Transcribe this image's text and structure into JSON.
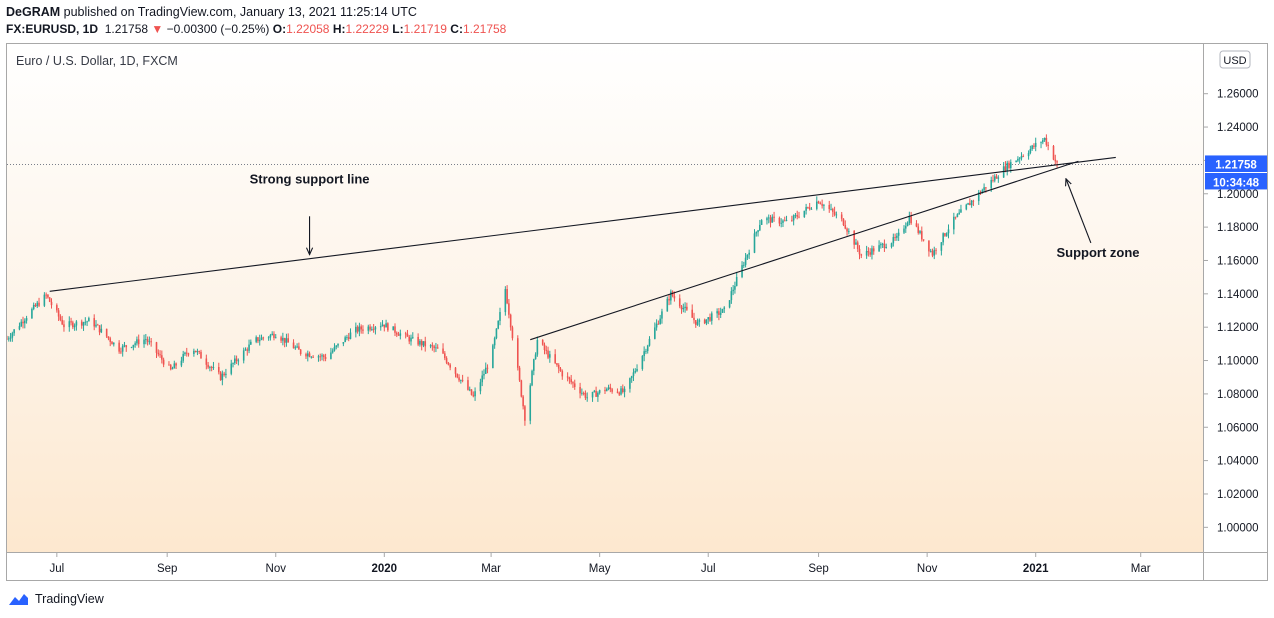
{
  "header": {
    "author": "DeGRAM",
    "published": " published on TradingView.com, January 13, 2021 11:25:14 UTC",
    "symbol": "FX:EURUSD, 1D",
    "last": "1.21758",
    "change": "−0.00300 (−0.25%)",
    "open_label": "O:",
    "open": "1.22058",
    "high_label": "H:",
    "high": "1.22229",
    "low_label": "L:",
    "low": "1.21719",
    "close_label": "C:",
    "close": "1.21758"
  },
  "footer": {
    "brand": "TradingView"
  },
  "colors": {
    "up": "#26a69a",
    "down": "#ef5350",
    "accent": "#2962ff",
    "price_tag": "#2962ff"
  },
  "chart_data": {
    "type": "candlestick",
    "title": "Euro / U.S. Dollar, 1D, FXCM",
    "currency_badge": "USD",
    "y_ticks": [
      "1.00000",
      "1.02000",
      "1.04000",
      "1.06000",
      "1.08000",
      "1.10000",
      "1.12000",
      "1.14000",
      "1.16000",
      "1.18000",
      "1.20000",
      "1.22000",
      "1.24000",
      "1.26000"
    ],
    "ylim": [
      0.99,
      1.285
    ],
    "x_ticks": [
      {
        "label": "Jul",
        "date": "2019-07-01",
        "bold": false
      },
      {
        "label": "Sep",
        "date": "2019-09-01",
        "bold": false
      },
      {
        "label": "Nov",
        "date": "2019-11-01",
        "bold": false
      },
      {
        "label": "2020",
        "date": "2020-01-01",
        "bold": true
      },
      {
        "label": "Mar",
        "date": "2020-03-01",
        "bold": false
      },
      {
        "label": "May",
        "date": "2020-05-01",
        "bold": false
      },
      {
        "label": "Jul",
        "date": "2020-07-01",
        "bold": false
      },
      {
        "label": "Sep",
        "date": "2020-09-01",
        "bold": false
      },
      {
        "label": "Nov",
        "date": "2020-11-01",
        "bold": false
      },
      {
        "label": "2021",
        "date": "2021-01-01",
        "bold": true
      },
      {
        "label": "Mar",
        "date": "2021-03-01",
        "bold": false
      }
    ],
    "xlim": [
      "2019-06-03",
      "2021-04-05"
    ],
    "price_path": [
      [
        "2019-06-03",
        1.113
      ],
      [
        "2019-06-15",
        1.128
      ],
      [
        "2019-06-25",
        1.139
      ],
      [
        "2019-07-05",
        1.121
      ],
      [
        "2019-07-20",
        1.124
      ],
      [
        "2019-08-05",
        1.107
      ],
      [
        "2019-08-20",
        1.113
      ],
      [
        "2019-09-03",
        1.094
      ],
      [
        "2019-09-15",
        1.108
      ],
      [
        "2019-10-01",
        1.09
      ],
      [
        "2019-10-20",
        1.112
      ],
      [
        "2019-11-01",
        1.116
      ],
      [
        "2019-11-15",
        1.105
      ],
      [
        "2019-11-29",
        1.102
      ],
      [
        "2019-12-15",
        1.118
      ],
      [
        "2019-12-31",
        1.122
      ],
      [
        "2020-01-15",
        1.113
      ],
      [
        "2020-02-01",
        1.106
      ],
      [
        "2020-02-20",
        1.078
      ],
      [
        "2020-03-01",
        1.102
      ],
      [
        "2020-03-09",
        1.143
      ],
      [
        "2020-03-20",
        1.066
      ],
      [
        "2020-03-27",
        1.112
      ],
      [
        "2020-04-10",
        1.092
      ],
      [
        "2020-04-24",
        1.078
      ],
      [
        "2020-05-05",
        1.083
      ],
      [
        "2020-05-15",
        1.081
      ],
      [
        "2020-05-28",
        1.11
      ],
      [
        "2020-06-10",
        1.14
      ],
      [
        "2020-06-25",
        1.122
      ],
      [
        "2020-07-10",
        1.13
      ],
      [
        "2020-07-31",
        1.185
      ],
      [
        "2020-08-15",
        1.183
      ],
      [
        "2020-09-01",
        1.196
      ],
      [
        "2020-09-15",
        1.183
      ],
      [
        "2020-09-25",
        1.163
      ],
      [
        "2020-10-15",
        1.173
      ],
      [
        "2020-10-22",
        1.186
      ],
      [
        "2020-11-04",
        1.164
      ],
      [
        "2020-11-15",
        1.183
      ],
      [
        "2020-11-30",
        1.2
      ],
      [
        "2020-12-15",
        1.216
      ],
      [
        "2021-01-06",
        1.233
      ],
      [
        "2021-01-13",
        1.2176
      ]
    ],
    "last_price": 1.21758,
    "last_price_label": "1.21758",
    "countdown": "10:34:48",
    "trendlines": [
      {
        "from": [
          "2019-06-27",
          1.1415
        ],
        "to": [
          "2021-02-15",
          1.2218
        ]
      },
      {
        "from": [
          "2020-03-23",
          1.1125
        ],
        "to": [
          "2021-01-25",
          1.2195
        ]
      }
    ],
    "annotations": [
      {
        "text": "Strong support line",
        "at": [
          "2019-11-20",
          1.2062
        ],
        "arrow_from": [
          "2019-11-20",
          1.1865
        ],
        "arrow_to": [
          "2019-11-20",
          1.1635
        ]
      },
      {
        "text": "Support zone",
        "at": [
          "2021-02-05",
          1.162
        ],
        "arrow_from": [
          "2021-02-01",
          1.1705
        ],
        "arrow_to": [
          "2021-01-18",
          1.209
        ]
      }
    ]
  }
}
